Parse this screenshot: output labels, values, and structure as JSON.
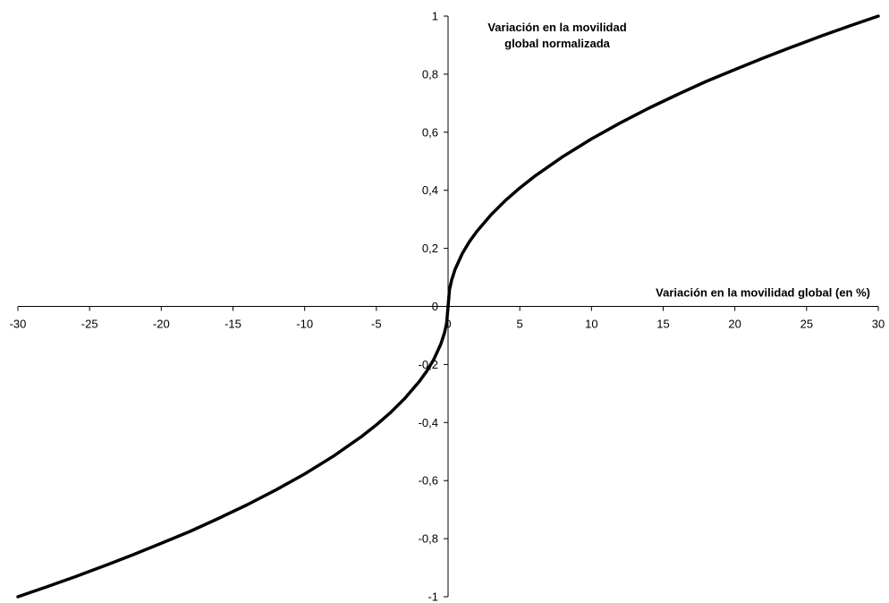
{
  "chart_data": {
    "type": "line",
    "title": "",
    "xlabel": "Variación en la movilidad global (en %)",
    "ylabel_lines": [
      "Variación en la movilidad",
      "global normalizada"
    ],
    "xlim": [
      -30,
      30
    ],
    "ylim": [
      -1,
      1
    ],
    "x_ticks": [
      -30,
      -25,
      -20,
      -15,
      -10,
      -5,
      0,
      5,
      10,
      15,
      20,
      25,
      30
    ],
    "x_tick_labels": [
      "-30",
      "-25",
      "-20",
      "-15",
      "-10",
      "-5",
      "0",
      "5",
      "10",
      "15",
      "20",
      "25",
      "30"
    ],
    "y_ticks": [
      -1,
      -0.8,
      -0.6,
      -0.4,
      -0.2,
      0,
      0.2,
      0.4,
      0.6,
      0.8,
      1
    ],
    "y_tick_labels": [
      "-1",
      "-0,8",
      "-0,6",
      "-0,4",
      "-0,2",
      "0",
      "0,2",
      "0,4",
      "0,6",
      "0,8",
      "1"
    ],
    "grid": false,
    "series": [
      {
        "color": "#000000",
        "x": [
          -30,
          -28,
          -26,
          -24,
          -22,
          -20,
          -18,
          -16,
          -14,
          -12,
          -10,
          -8,
          -6,
          -5,
          -4,
          -3,
          -2,
          -1.5,
          -1,
          -0.5,
          -0.25,
          -0.1,
          0,
          0.1,
          0.25,
          0.5,
          1,
          1.5,
          2,
          3,
          4,
          5,
          6,
          8,
          10,
          12,
          14,
          16,
          18,
          20,
          22,
          24,
          26,
          28,
          30
        ],
        "y": [
          -1,
          -0.966,
          -0.931,
          -0.894,
          -0.856,
          -0.816,
          -0.775,
          -0.73,
          -0.683,
          -0.632,
          -0.577,
          -0.516,
          -0.447,
          -0.408,
          -0.365,
          -0.316,
          -0.258,
          -0.224,
          -0.183,
          -0.129,
          -0.091,
          -0.058,
          0,
          0.058,
          0.091,
          0.129,
          0.183,
          0.224,
          0.258,
          0.316,
          0.365,
          0.408,
          0.447,
          0.516,
          0.577,
          0.632,
          0.683,
          0.73,
          0.775,
          0.816,
          0.856,
          0.894,
          0.931,
          0.966,
          1
        ]
      }
    ]
  }
}
